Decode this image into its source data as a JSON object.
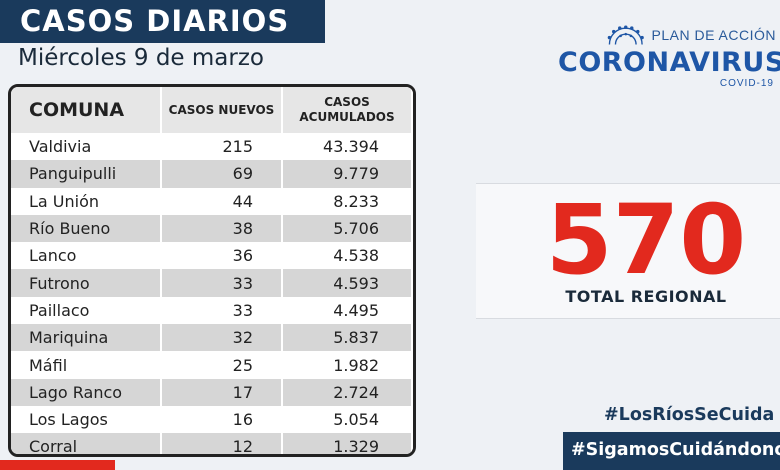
{
  "header": {
    "title": "CASOS DIARIOS",
    "date": "Miércoles 9 de marzo"
  },
  "logo": {
    "plan": "PLAN DE ACCIÓN",
    "name": "CORONAVIRUS",
    "sub": "COVID-19",
    "icon": "virus-icon"
  },
  "table": {
    "headers": [
      "COMUNA",
      "CASOS NUEVOS",
      "CASOS ACUMULADOS"
    ],
    "rows": [
      [
        "Valdivia",
        "215",
        "43.394"
      ],
      [
        "Panguipulli",
        "69",
        "9.779"
      ],
      [
        "La Unión",
        "44",
        "8.233"
      ],
      [
        "Río Bueno",
        "38",
        "5.706"
      ],
      [
        "Lanco",
        "36",
        "4.538"
      ],
      [
        "Futrono",
        "33",
        "4.593"
      ],
      [
        "Paillaco",
        "33",
        "4.495"
      ],
      [
        "Mariquina",
        "32",
        "5.837"
      ],
      [
        "Máfil",
        "25",
        "1.982"
      ],
      [
        "Lago Ranco",
        "17",
        "2.724"
      ],
      [
        "Los Lagos",
        "16",
        "5.054"
      ],
      [
        "Corral",
        "12",
        "1.329"
      ]
    ]
  },
  "total": {
    "value": "570",
    "label": "TOTAL REGIONAL"
  },
  "hashtags": [
    "#LosRíosSeCuida",
    "#SigamosCuidándonos"
  ],
  "colors": {
    "navy": "#1a3a5c",
    "brand_blue": "#1e56a6",
    "accent_red": "#e2291e"
  }
}
